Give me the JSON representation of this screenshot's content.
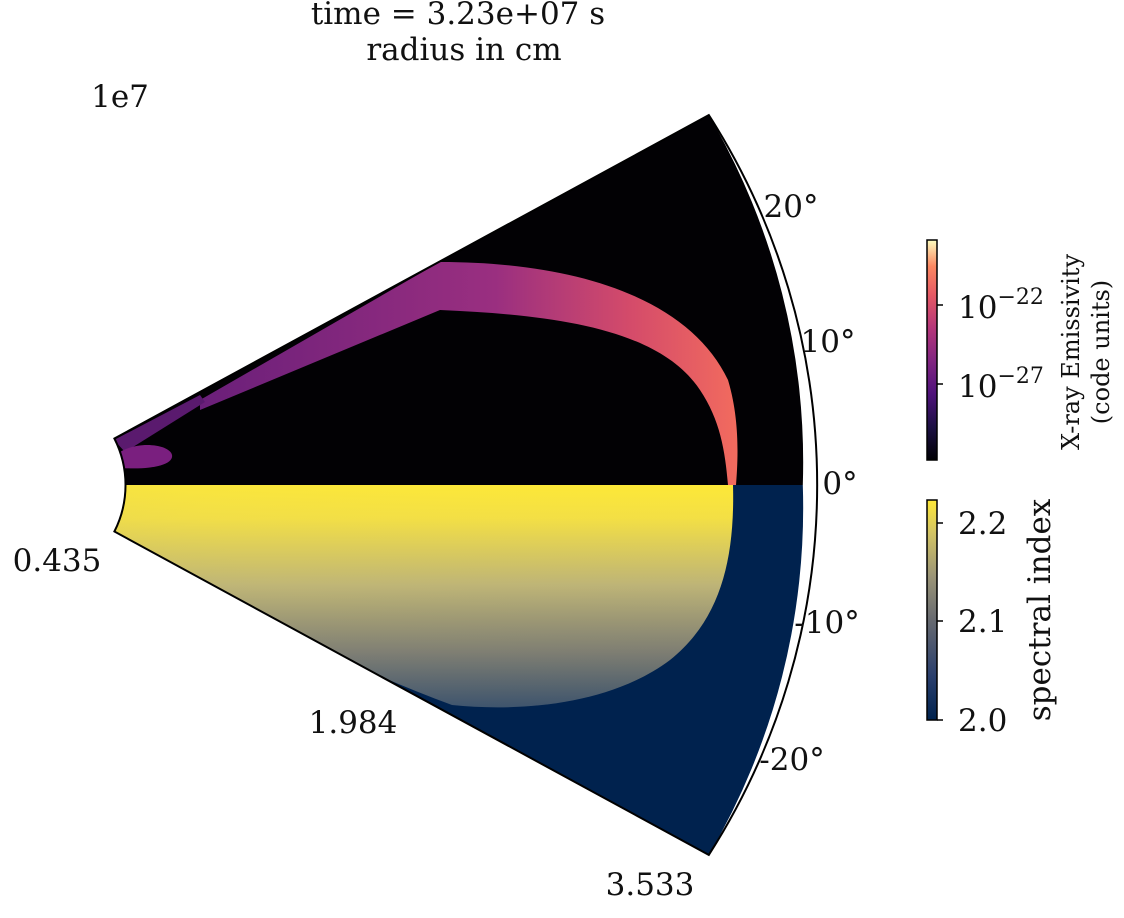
{
  "title": {
    "line1": "time = 3.23e+07 s",
    "line2": "radius in cm"
  },
  "chart_data": [
    {
      "type": "heatmap",
      "projection": "polar-wedge",
      "r_scale_label": "1e7",
      "r_ticks": [
        "0.435",
        "1.984",
        "3.533"
      ],
      "r_range": [
        0.435,
        3.533
      ],
      "theta_ticks": [
        "20°",
        "10°",
        "0°",
        "-10°",
        "-20°"
      ],
      "theta_range_deg": [
        -30,
        30
      ],
      "upper_half": {
        "quantity": "X-ray Emissivity",
        "colormap": "magma",
        "colorbar_label": "X-ray Emissivity\n(code units)",
        "colorbar_ticks": [
          "10⁻²²",
          "10⁻²⁷"
        ],
        "scale": "log"
      },
      "lower_half": {
        "quantity": "spectral index",
        "colormap": "cividis",
        "colorbar_label": "spectral index",
        "colorbar_ticks": [
          "2.2",
          "2.1",
          "2.0"
        ],
        "range": [
          2.0,
          2.22
        ]
      }
    }
  ],
  "colors": {
    "background_upper": "#020104",
    "background_lower": "#00224e",
    "shell_violet": "#7a1f7f",
    "shell_pink": "#e2585f",
    "index_high": "#fde838",
    "index_mid": "#8c8a7a",
    "index_low": "#1d3a6c"
  }
}
